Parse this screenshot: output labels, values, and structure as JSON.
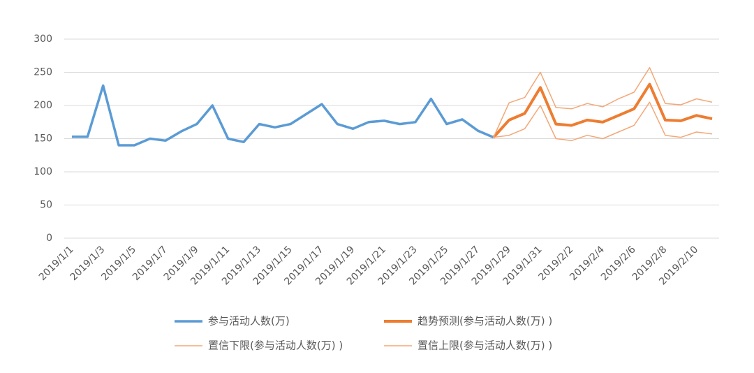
{
  "chart_data": {
    "type": "line",
    "categories": [
      "2019/1/1",
      null,
      "2019/1/3",
      null,
      "2019/1/5",
      null,
      "2019/1/7",
      null,
      "2019/1/9",
      null,
      "2019/1/11",
      null,
      "2019/1/13",
      null,
      "2019/1/15",
      null,
      "2019/1/17",
      null,
      "2019/1/19",
      null,
      "2019/1/21",
      null,
      "2019/1/23",
      null,
      "2019/1/25",
      null,
      "2019/1/27",
      null,
      "2019/1/29",
      null,
      "2019/1/31",
      null,
      "2019/2/2",
      null,
      "2019/2/4",
      null,
      "2019/2/6",
      null,
      "2019/2/8",
      null,
      "2019/2/10",
      null
    ],
    "series": [
      {
        "name": "参与活动人数(万)",
        "color": "#5b9bd5",
        "width": 3.5,
        "values": [
          153,
          153,
          230,
          140,
          140,
          150,
          147,
          161,
          172,
          200,
          150,
          145,
          172,
          167,
          172,
          187,
          202,
          172,
          165,
          175,
          177,
          172,
          175,
          210,
          172,
          179,
          162,
          152,
          null,
          null,
          null,
          null,
          null,
          null,
          null,
          null,
          null,
          null,
          null,
          null,
          null,
          null
        ]
      },
      {
        "name": "趋势预测(参与活动人数(万) )",
        "color": "#ed7d31",
        "width": 4,
        "values": [
          null,
          null,
          null,
          null,
          null,
          null,
          null,
          null,
          null,
          null,
          null,
          null,
          null,
          null,
          null,
          null,
          null,
          null,
          null,
          null,
          null,
          null,
          null,
          null,
          null,
          null,
          null,
          152,
          178,
          188,
          227,
          172,
          170,
          178,
          175,
          185,
          195,
          232,
          178,
          177,
          185,
          180
        ]
      },
      {
        "name": "置信下限(参与活动人数(万) )",
        "color": "#f4a777",
        "width": 1.5,
        "values": [
          null,
          null,
          null,
          null,
          null,
          null,
          null,
          null,
          null,
          null,
          null,
          null,
          null,
          null,
          null,
          null,
          null,
          null,
          null,
          null,
          null,
          null,
          null,
          null,
          null,
          null,
          null,
          152,
          155,
          165,
          200,
          150,
          147,
          155,
          150,
          160,
          170,
          205,
          155,
          152,
          160,
          157
        ]
      },
      {
        "name": "置信上限(参与活动人数(万) )",
        "color": "#f4a777",
        "width": 1.5,
        "values": [
          null,
          null,
          null,
          null,
          null,
          null,
          null,
          null,
          null,
          null,
          null,
          null,
          null,
          null,
          null,
          null,
          null,
          null,
          null,
          null,
          null,
          null,
          null,
          null,
          null,
          null,
          null,
          152,
          204,
          212,
          250,
          197,
          195,
          203,
          198,
          210,
          220,
          257,
          203,
          201,
          210,
          205
        ]
      }
    ],
    "ylim": [
      0,
      300
    ],
    "yticks": [
      0,
      50,
      100,
      150,
      200,
      250,
      300
    ],
    "grid": true,
    "legend": "bottom"
  }
}
